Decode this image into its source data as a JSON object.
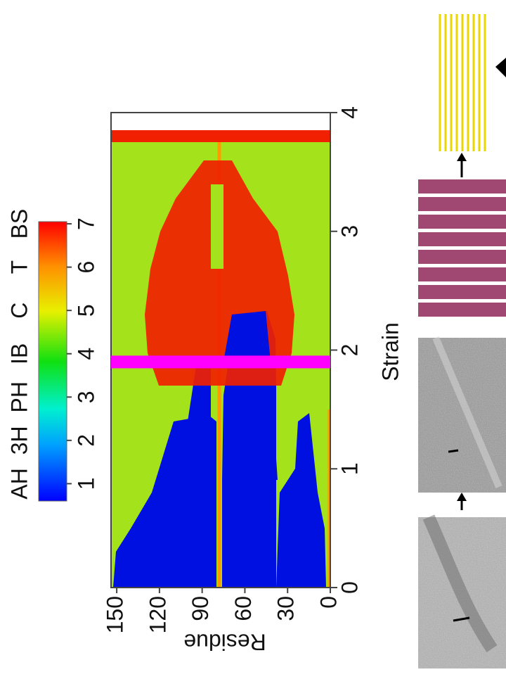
{
  "chart_data": {
    "type": "heatmap",
    "xlabel": "Strain",
    "ylabel": "Residue",
    "xlim": [
      0,
      4
    ],
    "xticks": [
      0,
      1,
      2,
      3,
      4
    ],
    "ylim": [
      0,
      154
    ],
    "yticks": [
      0,
      30,
      60,
      90,
      120,
      150
    ],
    "colorbar": {
      "clim": [
        0.6,
        7.05
      ],
      "ticks": [
        1,
        2,
        3,
        4,
        5,
        6,
        7
      ],
      "labels": [
        "AH",
        "3H",
        "PH",
        "IB",
        "C",
        "T",
        "BS"
      ]
    },
    "highlight_x": 1.9,
    "highlight_color": "#ff00ff"
  }
}
